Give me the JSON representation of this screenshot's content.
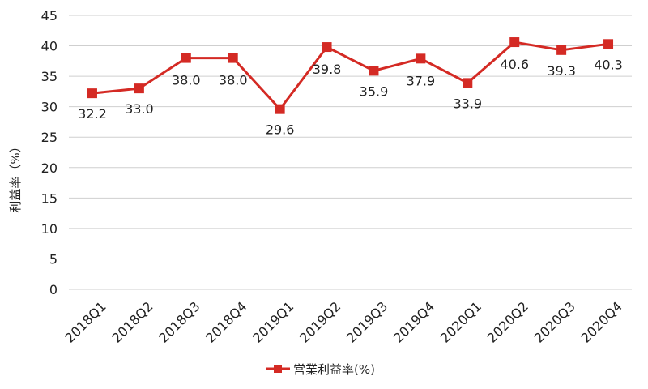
{
  "chart_data": {
    "type": "line",
    "categories": [
      "2018Q1",
      "2018Q2",
      "2018Q3",
      "2018Q4",
      "2019Q1",
      "2019Q2",
      "2019Q3",
      "2019Q4",
      "2020Q1",
      "2020Q2",
      "2020Q3",
      "2020Q4"
    ],
    "series": [
      {
        "name": "営業利益率(%)",
        "values": [
          32.2,
          33.0,
          38.0,
          38.0,
          29.6,
          39.8,
          35.9,
          37.9,
          33.9,
          40.6,
          39.3,
          40.3
        ],
        "labels": [
          "32.2",
          "33.0",
          "38.0",
          "38.0",
          "29.6",
          "39.8",
          "35.9",
          "37.9",
          "33.9",
          "40.6",
          "39.3",
          "40.3"
        ],
        "color": "#d42a24"
      }
    ],
    "ylabel": "利益率（%）",
    "xlabel": "",
    "ylim": [
      0,
      45
    ],
    "yticks": [
      "0",
      "5",
      "10",
      "15",
      "20",
      "25",
      "30",
      "35",
      "40",
      "45"
    ],
    "grid": true,
    "legend": "bottom"
  }
}
